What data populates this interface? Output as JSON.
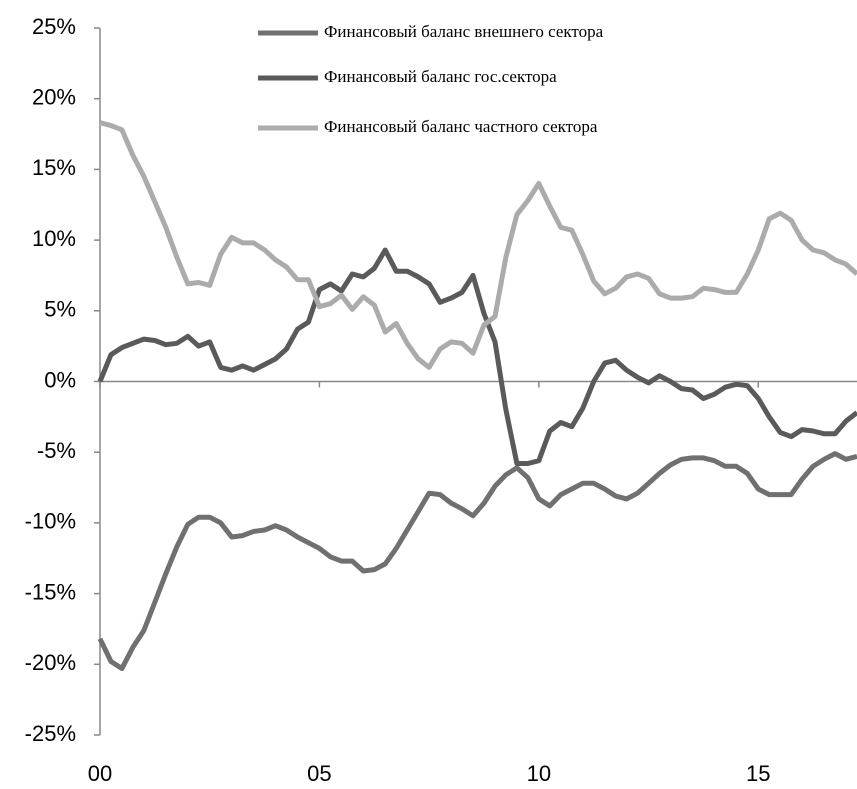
{
  "chart_data": {
    "type": "line",
    "x": [
      0,
      0.25,
      0.5,
      0.75,
      1,
      1.25,
      1.5,
      1.75,
      2,
      2.25,
      2.5,
      2.75,
      3,
      3.25,
      3.5,
      3.75,
      4,
      4.25,
      4.5,
      4.75,
      5,
      5.25,
      5.5,
      5.75,
      6,
      6.25,
      6.5,
      6.75,
      7,
      7.25,
      7.5,
      7.75,
      8,
      8.25,
      8.5,
      8.75,
      9,
      9.25,
      9.5,
      9.75,
      10,
      10.25,
      10.5,
      10.75,
      11,
      11.25,
      11.5,
      11.75,
      12,
      12.25,
      12.5,
      12.75,
      13,
      13.25,
      13.5,
      13.75,
      14,
      14.25,
      14.5,
      14.75,
      15,
      15.25,
      15.5,
      15.75,
      16,
      16.25,
      16.5,
      16.75,
      17,
      17.25
    ],
    "series": [
      {
        "name": "Финансовый баланс внешнего сектора",
        "color": "#707070",
        "values": [
          -18.2,
          -19.8,
          -20.3,
          -18.8,
          -17.6,
          -15.6,
          -13.6,
          -11.7,
          -10.1,
          -9.6,
          -9.6,
          -10.0,
          -11.0,
          -10.9,
          -10.6,
          -10.5,
          -10.2,
          -10.5,
          -11.0,
          -11.4,
          -11.8,
          -12.4,
          -12.7,
          -12.7,
          -13.4,
          -13.3,
          -12.9,
          -11.8,
          -10.5,
          -9.2,
          -7.9,
          -8.0,
          -8.6,
          -9.0,
          -9.5,
          -8.6,
          -7.4,
          -6.6,
          -6.1,
          -6.8,
          -8.3,
          -8.8,
          -8.0,
          -7.6,
          -7.2,
          -7.2,
          -7.6,
          -8.1,
          -8.3,
          -7.9,
          -7.2,
          -6.5,
          -5.9,
          -5.5,
          -5.4,
          -5.4,
          -5.6,
          -6.0,
          -6.0,
          -6.5,
          -7.6,
          -8.0,
          -8.0,
          -8.0,
          -6.9,
          -6.0,
          -5.5,
          -5.1,
          -5.5,
          -5.3
        ]
      },
      {
        "name": "Финансовый баланс гос.сектора",
        "color": "#5a5a5a",
        "values": [
          0.0,
          1.9,
          2.4,
          2.7,
          3.0,
          2.9,
          2.6,
          2.7,
          3.2,
          2.5,
          2.8,
          1.0,
          0.8,
          1.1,
          0.8,
          1.2,
          1.6,
          2.3,
          3.7,
          4.2,
          6.5,
          6.9,
          6.4,
          7.6,
          7.4,
          8.0,
          9.3,
          7.8,
          7.8,
          7.4,
          6.9,
          5.6,
          5.9,
          6.3,
          7.5,
          4.8,
          2.8,
          -2.0,
          -5.8,
          -5.8,
          -5.6,
          -3.5,
          -2.9,
          -3.2,
          -1.9,
          0.0,
          1.3,
          1.5,
          0.8,
          0.3,
          -0.1,
          0.4,
          0.0,
          -0.5,
          -0.6,
          -1.2,
          -0.9,
          -0.4,
          -0.2,
          -0.3,
          -1.2,
          -2.5,
          -3.6,
          -3.9,
          -3.4,
          -3.5,
          -3.7,
          -3.7,
          -2.8,
          -2.2
        ]
      },
      {
        "name": "Финансовый баланс частного сектора",
        "color": "#ababab",
        "values": [
          18.3,
          18.1,
          17.8,
          16.0,
          14.5,
          12.7,
          10.9,
          8.8,
          6.9,
          7.0,
          6.8,
          9.0,
          10.2,
          9.8,
          9.8,
          9.3,
          8.6,
          8.1,
          7.2,
          7.2,
          5.3,
          5.5,
          6.1,
          5.1,
          6.0,
          5.4,
          3.5,
          4.1,
          2.7,
          1.6,
          1.0,
          2.3,
          2.8,
          2.7,
          2.0,
          4.0,
          4.6,
          8.8,
          11.8,
          12.8,
          14.0,
          12.4,
          10.9,
          10.7,
          9.0,
          7.1,
          6.2,
          6.6,
          7.4,
          7.6,
          7.3,
          6.2,
          5.9,
          5.9,
          6.0,
          6.6,
          6.5,
          6.3,
          6.3,
          7.6,
          9.3,
          11.5,
          11.9,
          11.4,
          10.0,
          9.3,
          9.1,
          8.6,
          8.3,
          7.6
        ]
      }
    ],
    "xlim": [
      0,
      17.25
    ],
    "xticks": [
      {
        "value": 0,
        "label": "00"
      },
      {
        "value": 5,
        "label": "05"
      },
      {
        "value": 10,
        "label": "10"
      },
      {
        "value": 15,
        "label": "15"
      }
    ],
    "ylim": [
      -25,
      25
    ],
    "yticks": [
      {
        "value": -25,
        "label": "-25%"
      },
      {
        "value": -20,
        "label": "-20%"
      },
      {
        "value": -15,
        "label": "-15%"
      },
      {
        "value": -10,
        "label": "-10%"
      },
      {
        "value": -5,
        "label": "-5%"
      },
      {
        "value": 0,
        "label": "0%"
      },
      {
        "value": 5,
        "label": "5%"
      },
      {
        "value": 10,
        "label": "10%"
      },
      {
        "value": 15,
        "label": "15%"
      },
      {
        "value": 20,
        "label": "20%"
      },
      {
        "value": 25,
        "label": "25%"
      }
    ],
    "grid": false,
    "legend": "top"
  }
}
